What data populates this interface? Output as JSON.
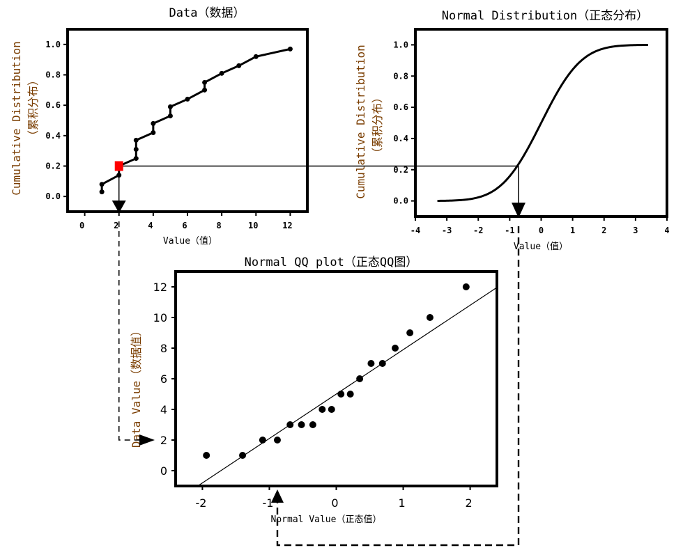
{
  "chart_data": [
    {
      "id": "data-ecdf",
      "type": "line",
      "title": "Data（数据）",
      "xlabel": "Value（值）",
      "ylabel_line1": "Cumulative Distribution",
      "ylabel_line2": "（累积分布）",
      "xlim": [
        -1,
        13
      ],
      "ylim": [
        -0.1,
        1.1
      ],
      "xticks": [
        0,
        2,
        4,
        6,
        8,
        10,
        12
      ],
      "yticks": [
        0.0,
        0.2,
        0.4,
        0.6,
        0.8,
        1.0
      ],
      "ytick_labels": [
        "0.0",
        "0.2",
        "0.4",
        "0.6",
        "0.8",
        "1.0"
      ],
      "points": [
        {
          "x": 1,
          "y": 0.03
        },
        {
          "x": 1,
          "y": 0.08
        },
        {
          "x": 2,
          "y": 0.14
        },
        {
          "x": 2,
          "y": 0.2
        },
        {
          "x": 3,
          "y": 0.25
        },
        {
          "x": 3,
          "y": 0.31
        },
        {
          "x": 3,
          "y": 0.37
        },
        {
          "x": 4,
          "y": 0.42
        },
        {
          "x": 4,
          "y": 0.48
        },
        {
          "x": 5,
          "y": 0.53
        },
        {
          "x": 5,
          "y": 0.59
        },
        {
          "x": 6,
          "y": 0.64
        },
        {
          "x": 7,
          "y": 0.7
        },
        {
          "x": 7,
          "y": 0.75
        },
        {
          "x": 8,
          "y": 0.81
        },
        {
          "x": 9,
          "y": 0.86
        },
        {
          "x": 10,
          "y": 0.92
        },
        {
          "x": 12,
          "y": 0.97
        }
      ],
      "highlight": {
        "x": 2,
        "y": 0.2,
        "color": "#ff0000"
      }
    },
    {
      "id": "normal-cdf",
      "type": "line",
      "title": "Normal Distribution（正态分布）",
      "xlabel": "Value（值）",
      "ylabel_line1": "Cumulative Distribution",
      "ylabel_line2": "（累积分布）",
      "xlim": [
        -4,
        4
      ],
      "ylim": [
        -0.1,
        1.1
      ],
      "xticks": [
        -4,
        -3,
        -2,
        -1,
        0,
        1,
        2,
        3,
        4
      ],
      "yticks": [
        0.0,
        0.2,
        0.4,
        0.6,
        0.8,
        1.0
      ],
      "ytick_labels": [
        "0.0",
        "0.2",
        "0.4",
        "0.6",
        "0.8",
        "1.0"
      ],
      "curve_range": [
        -3.3,
        3.4
      ],
      "marker": {
        "x": -0.72,
        "y": 0.22
      }
    },
    {
      "id": "normal-qq",
      "type": "scatter",
      "title": "Normal QQ plot（正态QQ图）",
      "xlabel": "Normal Value（正态值）",
      "ylabel": "Data Value（数据值）",
      "xlim": [
        -2.4,
        2.4
      ],
      "ylim": [
        -1,
        13
      ],
      "xticks": [
        -2,
        -1,
        0,
        1,
        2
      ],
      "yticks": [
        0,
        2,
        4,
        6,
        8,
        10,
        12
      ],
      "points": [
        {
          "x": -1.94,
          "y": 1
        },
        {
          "x": -1.4,
          "y": 1
        },
        {
          "x": -1.1,
          "y": 2
        },
        {
          "x": -0.88,
          "y": 2
        },
        {
          "x": -0.69,
          "y": 3
        },
        {
          "x": -0.52,
          "y": 3
        },
        {
          "x": -0.35,
          "y": 3
        },
        {
          "x": -0.21,
          "y": 4
        },
        {
          "x": -0.07,
          "y": 4
        },
        {
          "x": 0.07,
          "y": 5
        },
        {
          "x": 0.21,
          "y": 5
        },
        {
          "x": 0.35,
          "y": 6
        },
        {
          "x": 0.52,
          "y": 7
        },
        {
          "x": 0.69,
          "y": 7
        },
        {
          "x": 0.88,
          "y": 8
        },
        {
          "x": 1.1,
          "y": 9
        },
        {
          "x": 1.4,
          "y": 10
        },
        {
          "x": 1.94,
          "y": 12
        }
      ],
      "fit_line": {
        "intercept": 5.0,
        "slope": 2.9
      },
      "marker_x": -0.88,
      "marker_y": 2
    }
  ]
}
